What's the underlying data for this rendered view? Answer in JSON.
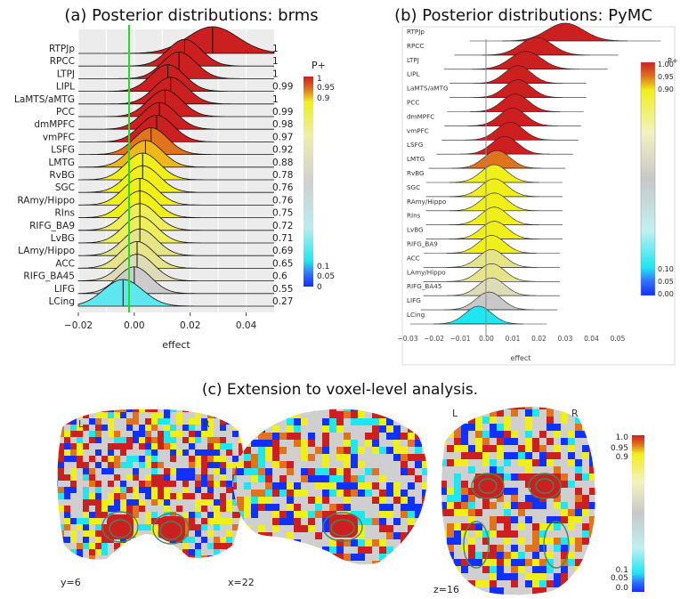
{
  "panel_a": {
    "title": "(a) Posterior distributions: brms",
    "xlabel": "effect",
    "legend_title": "P+",
    "legend_ticks": [
      "1",
      "0.95",
      "0.9",
      "0.1",
      "0.05",
      "0"
    ],
    "ticks": [
      "−0.02",
      "0.00",
      "0.02",
      "0.04"
    ]
  },
  "panel_b": {
    "title": "(b) Posterior distributions: PyMC",
    "xlabel": "effect",
    "legend_title": "P+",
    "legend_ticks": [
      "1.00",
      "0.95",
      "0.90",
      "0.10",
      "0.05",
      "0.00"
    ],
    "ticks": [
      "−0.03",
      "−0.02",
      "−0.01",
      "0.00",
      "0.01",
      "0.02",
      "0.03",
      "0.04",
      "0.05"
    ]
  },
  "panel_c": {
    "title": "(c) Extension to voxel-level analysis.",
    "slice_labels": [
      "y=6",
      "x=22",
      "z=16"
    ],
    "hemi_left": "L",
    "hemi_right": "R",
    "legend_ticks": [
      "1.0",
      "0.95",
      "0.9",
      "0.1",
      "0.05",
      "0.0"
    ]
  },
  "chart_data": [
    {
      "type": "ridgeline",
      "title": "(a) Posterior distributions: brms",
      "xlabel": "effect",
      "xlim": [
        -0.02,
        0.05
      ],
      "reference_line": 0,
      "regions": [
        "RTPJp",
        "RPCC",
        "LTPJ",
        "LIPL",
        "LaMTS/aMTG",
        "PCC",
        "dmMPFC",
        "vmPFC",
        "LSFG",
        "LMTG",
        "RvBG",
        "SGC",
        "RAmy/Hippo",
        "RIns",
        "RIFG_BA9",
        "LvBG",
        "LAmy/Hippo",
        "ACC",
        "RIFG_BA45",
        "LIFG",
        "LCing"
      ],
      "p_plus": [
        "1",
        "1",
        "1",
        "0.99",
        "1",
        "0.99",
        "0.98",
        "0.97",
        "0.92",
        "0.88",
        "0.78",
        "0.76",
        "0.76",
        "0.75",
        "0.72",
        "0.71",
        "0.69",
        "0.65",
        "0.6",
        "0.55",
        "0.27"
      ],
      "means": [
        0.028,
        0.018,
        0.016,
        0.012,
        0.013,
        0.011,
        0.009,
        0.008,
        0.006,
        0.004,
        0.003,
        0.003,
        0.002,
        0.002,
        0.002,
        0.002,
        0.002,
        0.001,
        0.001,
        0.0,
        -0.004
      ],
      "sds": [
        0.009,
        0.006,
        0.006,
        0.006,
        0.006,
        0.006,
        0.006,
        0.006,
        0.006,
        0.006,
        0.006,
        0.006,
        0.006,
        0.006,
        0.006,
        0.006,
        0.006,
        0.006,
        0.006,
        0.006,
        0.007
      ]
    },
    {
      "type": "ridgeline",
      "title": "(b) Posterior distributions: PyMC",
      "xlabel": "effect",
      "xlim": [
        -0.03,
        0.05
      ],
      "reference_line": 0,
      "regions": [
        "RTPJp",
        "RPCC",
        "LTPJ",
        "LIPL",
        "LaMTS/aMTG",
        "PCC",
        "dmMPFC",
        "vmPFC",
        "LSFG",
        "LMTG",
        "RvBG",
        "SGC",
        "RAmy/Hippo",
        "RIns",
        "LvBG",
        "RIFG_BA9",
        "ACC",
        "LAmy/Hippo",
        "RIFG_BA45",
        "LIFG",
        "LCing"
      ],
      "means": [
        0.03,
        0.019,
        0.015,
        0.012,
        0.012,
        0.011,
        0.01,
        0.009,
        0.007,
        0.004,
        0.003,
        0.003,
        0.003,
        0.003,
        0.003,
        0.002,
        0.002,
        0.002,
        0.002,
        0.001,
        -0.003
      ],
      "sds": [
        0.007,
        0.006,
        0.006,
        0.005,
        0.005,
        0.005,
        0.005,
        0.005,
        0.005,
        0.005,
        0.005,
        0.005,
        0.005,
        0.005,
        0.005,
        0.005,
        0.005,
        0.005,
        0.005,
        0.005,
        0.005
      ],
      "fill_colors": [
        "#cc1f1f",
        "#cc1f1f",
        "#cc1f1f",
        "#cc1f1f",
        "#cc1f1f",
        "#cc1f1f",
        "#cc1f1f",
        "#cc1f1f",
        "#cc1f1f",
        "#e0731e",
        "#f1ef1a",
        "#f1ef1a",
        "#f1ef1a",
        "#f1ef1a",
        "#f1ef1a",
        "#f1ef1a",
        "#e6e488",
        "#e6e488",
        "#dedcb6",
        "#c8c8c8",
        "#1fe6f0"
      ]
    }
  ],
  "colors": {
    "red": "#cc1f1f",
    "orange": "#e0731e",
    "yellow": "#f1ef1a",
    "gray": "#c8c8c8",
    "cyan": "#1fe6f0",
    "blue": "#1030ff",
    "green_line": "#22dd22"
  }
}
